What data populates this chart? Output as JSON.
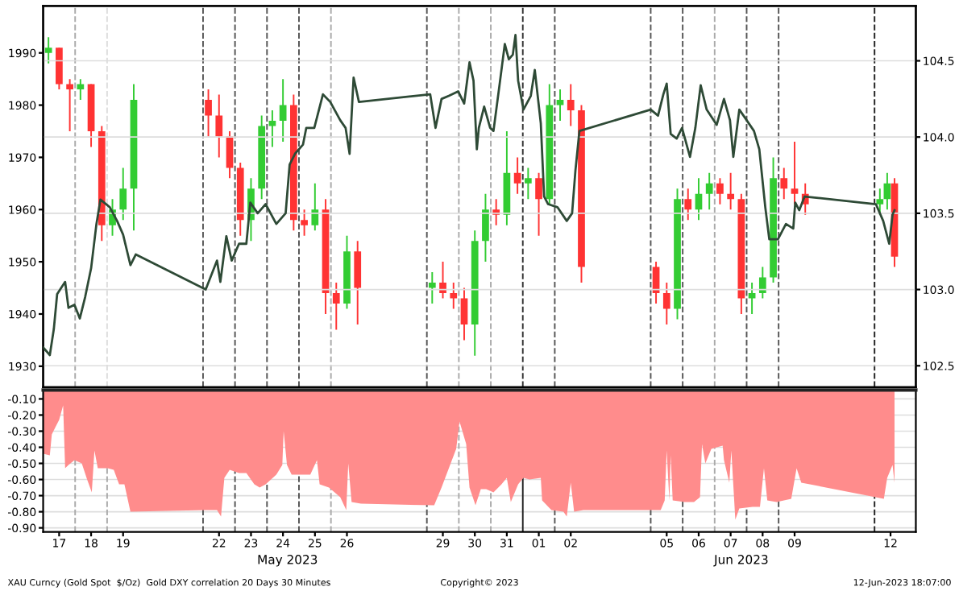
{
  "chart_data": [
    {
      "type": "candlestick",
      "tick_labels": "y",
      "grid": "y2",
      "xlim": [
        "2023-05-17T00:00",
        "2023-06-13T07:00"
      ],
      "ylim": [
        1926,
        1999
      ],
      "yticks": [
        1930,
        1940,
        1950,
        1960,
        1970,
        1980,
        1990
      ],
      "y2lim": [
        102.36,
        104.86
      ],
      "y2ticks": [
        {
          "value": 102.5,
          "label": "102.5"
        },
        {
          "value": 103.0,
          "label": "103.0"
        },
        {
          "value": 103.5,
          "label": "103.5"
        },
        {
          "value": 104.0,
          "label": "104.0"
        },
        {
          "value": 104.5,
          "label": "104.5"
        }
      ],
      "ref_lines": [
        {
          "axis": "x",
          "value": "2023-05-18",
          "color": "#aaaaaa",
          "line_style": "dashed"
        },
        {
          "axis": "x",
          "value": "2023-05-19",
          "color": "#dddddd",
          "line_style": "dashed"
        },
        {
          "axis": "x",
          "value": "2023-05-22",
          "color": "#555555",
          "line_style": "dashed"
        },
        {
          "axis": "x",
          "value": "2023-05-23",
          "color": "#555555",
          "line_style": "dashed"
        },
        {
          "axis": "x",
          "value": "2023-05-24",
          "color": "#555555",
          "line_style": "dashed"
        },
        {
          "axis": "x",
          "value": "2023-05-25",
          "color": "#555555",
          "line_style": "dashed"
        },
        {
          "axis": "x",
          "value": "2023-05-26",
          "color": "#aaaaaa",
          "line_style": "dashed"
        },
        {
          "axis": "x",
          "value": "2023-05-29",
          "color": "#555555",
          "line_style": "dashed"
        },
        {
          "axis": "x",
          "value": "2023-05-30",
          "color": "#aaaaaa",
          "line_style": "dashed"
        },
        {
          "axis": "x",
          "value": "2023-05-31",
          "color": "#aaaaaa",
          "line_style": "dashed"
        },
        {
          "axis": "x",
          "value": "2023-06-01",
          "color": "#333333",
          "line_style": "dashed"
        },
        {
          "axis": "x",
          "value": "2023-06-02",
          "color": "#555555",
          "line_style": "dashed"
        },
        {
          "axis": "x",
          "value": "2023-06-05",
          "color": "#555555",
          "line_style": "dashed"
        },
        {
          "axis": "x",
          "value": "2023-06-06",
          "color": "#555555",
          "line_style": "dashed"
        },
        {
          "axis": "x",
          "value": "2023-06-07",
          "color": "#aaaaaa",
          "line_style": "dashed"
        },
        {
          "axis": "x",
          "value": "2023-06-08",
          "color": "#555555",
          "line_style": "dashed"
        },
        {
          "axis": "x",
          "value": "2023-06-09",
          "color": "#555555",
          "line_style": "dashed"
        },
        {
          "axis": "x",
          "value": "2023-06-12",
          "color": "#222222",
          "line_style": "dashed"
        }
      ],
      "series": [
        {
          "x": [
            "2023-05-17T04:00",
            "2023-05-17T12:00",
            "2023-05-17T20:00",
            "2023-05-18T04:00",
            "2023-05-18T12:00",
            "2023-05-18T20:00",
            "2023-05-19T04:00",
            "2023-05-19T12:00",
            "2023-05-19T20:00",
            "2023-05-22T04:00",
            "2023-05-22T12:00",
            "2023-05-22T20:00",
            "2023-05-23T04:00",
            "2023-05-23T12:00",
            "2023-05-23T20:00",
            "2023-05-24T04:00",
            "2023-05-24T12:00",
            "2023-05-24T20:00",
            "2023-05-25T04:00",
            "2023-05-25T12:00",
            "2023-05-25T20:00",
            "2023-05-26T04:00",
            "2023-05-26T12:00",
            "2023-05-26T20:00",
            "2023-05-29T04:00",
            "2023-05-29T12:00",
            "2023-05-29T20:00",
            "2023-05-30T04:00",
            "2023-05-30T12:00",
            "2023-05-30T20:00",
            "2023-05-31T04:00",
            "2023-05-31T12:00",
            "2023-05-31T20:00",
            "2023-06-01T04:00",
            "2023-06-01T12:00",
            "2023-06-01T20:00",
            "2023-06-02T04:00",
            "2023-06-02T12:00",
            "2023-06-02T20:00",
            "2023-06-05T04:00",
            "2023-06-05T12:00",
            "2023-06-05T20:00",
            "2023-06-06T04:00",
            "2023-06-06T12:00",
            "2023-06-06T20:00",
            "2023-06-07T04:00",
            "2023-06-07T12:00",
            "2023-06-07T20:00",
            "2023-06-08T04:00",
            "2023-06-08T12:00",
            "2023-06-08T20:00",
            "2023-06-09T04:00",
            "2023-06-09T12:00",
            "2023-06-09T20:00",
            "2023-06-12T04:00",
            "2023-06-12T09:30",
            "2023-06-12T15:00"
          ],
          "ohlc": [
            [
              1990,
              1993,
              1988,
              1991
            ],
            [
              1991,
              1991,
              1983,
              1984
            ],
            [
              1984,
              1985,
              1975,
              1983
            ],
            [
              1983,
              1985,
              1981,
              1984
            ],
            [
              1984,
              1984,
              1972,
              1975
            ],
            [
              1975,
              1976,
              1954,
              1957
            ],
            [
              1957,
              1962,
              1955,
              1960
            ],
            [
              1960,
              1968,
              1958,
              1964
            ],
            [
              1964,
              1984,
              1956,
              1981
            ],
            [
              1981,
              1983,
              1974,
              1978
            ],
            [
              1978,
              1982,
              1970,
              1974
            ],
            [
              1974,
              1975,
              1966,
              1968
            ],
            [
              1968,
              1969,
              1955,
              1958
            ],
            [
              1958,
              1966,
              1954,
              1964
            ],
            [
              1964,
              1978,
              1962,
              1976
            ],
            [
              1976,
              1979,
              1972,
              1977
            ],
            [
              1977,
              1985,
              1973,
              1980
            ],
            [
              1980,
              1982,
              1956,
              1958
            ],
            [
              1958,
              1960,
              1955,
              1957
            ],
            [
              1957,
              1965,
              1956,
              1960
            ],
            [
              1960,
              1962,
              1940,
              1944
            ],
            [
              1944,
              1946,
              1937,
              1942
            ],
            [
              1942,
              1955,
              1941,
              1952
            ],
            [
              1952,
              1954,
              1938,
              1945
            ],
            [
              1945,
              1948,
              1942,
              1946
            ],
            [
              1946,
              1950,
              1943,
              1944
            ],
            [
              1944,
              1946,
              1941,
              1943
            ],
            [
              1943,
              1945,
              1935,
              1938
            ],
            [
              1938,
              1956,
              1932,
              1954
            ],
            [
              1954,
              1963,
              1950,
              1960
            ],
            [
              1960,
              1962,
              1957,
              1959
            ],
            [
              1959,
              1975,
              1957,
              1967
            ],
            [
              1967,
              1970,
              1963,
              1965
            ],
            [
              1965,
              1968,
              1962,
              1966
            ],
            [
              1966,
              1967,
              1955,
              1962
            ],
            [
              1962,
              1984,
              1961,
              1980
            ],
            [
              1980,
              1983,
              1977,
              1981
            ],
            [
              1981,
              1984,
              1976,
              1979
            ],
            [
              1979,
              1980,
              1946,
              1949
            ],
            [
              1949,
              1950,
              1942,
              1944
            ],
            [
              1944,
              1946,
              1938,
              1941
            ],
            [
              1941,
              1964,
              1939,
              1962
            ],
            [
              1962,
              1964,
              1958,
              1960
            ],
            [
              1960,
              1966,
              1958,
              1963
            ],
            [
              1963,
              1967,
              1960,
              1965
            ],
            [
              1965,
              1966,
              1961,
              1963
            ],
            [
              1963,
              1967,
              1960,
              1962
            ],
            [
              1962,
              1963,
              1940,
              1943
            ],
            [
              1943,
              1946,
              1940,
              1944
            ],
            [
              1944,
              1949,
              1943,
              1947
            ],
            [
              1947,
              1970,
              1946,
              1966
            ],
            [
              1966,
              1968,
              1962,
              1964
            ],
            [
              1964,
              1973,
              1961,
              1963
            ],
            [
              1963,
              1965,
              1959,
              1961
            ],
            [
              1961,
              1964,
              1959,
              1962
            ],
            [
              1962,
              1967,
              1960,
              1965
            ],
            [
              1965,
              1966,
              1949,
              1951
            ]
          ],
          "colors": [
            "#33cc33",
            "#ff3333",
            "#ff3333",
            "#33cc33",
            "#ff3333",
            "#ff3333",
            "#33cc33",
            "#33cc33",
            "#33cc33",
            "#ff3333",
            "#ff3333",
            "#ff3333",
            "#ff3333",
            "#33cc33",
            "#33cc33",
            "#33cc33",
            "#33cc33",
            "#ff3333",
            "#ff3333",
            "#33cc33",
            "#ff3333",
            "#ff3333",
            "#33cc33",
            "#ff3333",
            "#33cc33",
            "#ff3333",
            "#ff3333",
            "#ff3333",
            "#33cc33",
            "#33cc33",
            "#ff3333",
            "#33cc33",
            "#ff3333",
            "#33cc33",
            "#ff3333",
            "#33cc33",
            "#33cc33",
            "#ff3333",
            "#ff3333",
            "#ff3333",
            "#ff3333",
            "#33cc33",
            "#ff3333",
            "#33cc33",
            "#33cc33",
            "#ff3333",
            "#ff3333",
            "#ff3333",
            "#33cc33",
            "#33cc33",
            "#33cc33",
            "#ff3333",
            "#ff3333",
            "#ff3333",
            "#33cc33",
            "#33cc33",
            "#ff3333"
          ]
        },
        {
          "type": "line",
          "axis": "y2",
          "color": "#2e4a36",
          "x": [
            "2023-05-17T00:00",
            "2023-05-17T05:00",
            "2023-05-17T08:00",
            "2023-05-17T10:30",
            "2023-05-17T16:30",
            "2023-05-17T19:00",
            "2023-05-17T23:30",
            "2023-05-18T03:30",
            "2023-05-18T07:30",
            "2023-05-18T12:00",
            "2023-05-18T16:00",
            "2023-05-18T19:00",
            "2023-05-19T02:00",
            "2023-05-19T07:30",
            "2023-05-19T12:00",
            "2023-05-19T17:30",
            "2023-05-19T21:30",
            "2023-05-22T02:00",
            "2023-05-22T10:30",
            "2023-05-22T13:00",
            "2023-05-22T17:30",
            "2023-05-22T21:30",
            "2023-05-23T03:00",
            "2023-05-23T08:30",
            "2023-05-23T11:30",
            "2023-05-23T17:00",
            "2023-05-23T23:00",
            "2023-05-24T07:00",
            "2023-05-24T14:00",
            "2023-05-24T17:00",
            "2023-05-24T21:00",
            "2023-05-25T03:00",
            "2023-05-25T05:30",
            "2023-05-25T11:30",
            "2023-05-25T18:00",
            "2023-05-25T23:30",
            "2023-05-26T07:00",
            "2023-05-26T11:00",
            "2023-05-26T14:00",
            "2023-05-26T17:00",
            "2023-05-26T21:00",
            "2023-05-29T02:30",
            "2023-05-29T06:30",
            "2023-05-29T11:00",
            "2023-05-29T16:30",
            "2023-05-29T23:30",
            "2023-05-30T04:00",
            "2023-05-30T08:00",
            "2023-05-30T11:00",
            "2023-05-30T13:30",
            "2023-05-30T15:00",
            "2023-05-30T19:00",
            "2023-05-30T23:30",
            "2023-05-31T02:00",
            "2023-05-31T06:30",
            "2023-05-31T10:30",
            "2023-05-31T13:30",
            "2023-05-31T16:30",
            "2023-05-31T18:30",
            "2023-05-31T20:30",
            "2023-06-01T00:30",
            "2023-06-01T06:00",
            "2023-06-01T09:00",
            "2023-06-01T13:30",
            "2023-06-01T16:00",
            "2023-06-01T19:00",
            "2023-06-02T02:00",
            "2023-06-02T09:00",
            "2023-06-02T13:00",
            "2023-06-02T15:30",
            "2023-06-02T18:30",
            "2023-06-05T00:00",
            "2023-06-05T05:30",
            "2023-06-05T09:30",
            "2023-06-05T12:00",
            "2023-06-05T15:00",
            "2023-06-05T19:30",
            "2023-06-05T23:30",
            "2023-06-06T05:30",
            "2023-06-06T09:30",
            "2023-06-06T13:30",
            "2023-06-06T18:00",
            "2023-06-07T01:30",
            "2023-06-07T07:00",
            "2023-06-07T11:30",
            "2023-06-07T14:00",
            "2023-06-07T18:30",
            "2023-06-07T22:30",
            "2023-06-08T05:30",
            "2023-06-08T09:30",
            "2023-06-08T14:00",
            "2023-06-08T17:00",
            "2023-06-08T23:30",
            "2023-06-09T05:30",
            "2023-06-09T11:00",
            "2023-06-09T12:30",
            "2023-06-09T15:30",
            "2023-06-09T19:30",
            "2023-06-12T01:00",
            "2023-06-12T06:30",
            "2023-06-12T11:00",
            "2023-06-12T13:30",
            "2023-06-12T15:00"
          ],
          "values": [
            102.62,
            102.57,
            102.74,
            102.97,
            103.05,
            102.88,
            102.9,
            102.81,
            102.95,
            103.14,
            103.43,
            103.59,
            103.54,
            103.45,
            103.36,
            103.16,
            103.23,
            103.0,
            103.19,
            103.05,
            103.35,
            103.19,
            103.3,
            103.3,
            103.57,
            103.5,
            103.56,
            103.43,
            103.5,
            103.82,
            103.89,
            103.95,
            104.06,
            104.06,
            104.28,
            104.23,
            104.11,
            104.06,
            103.89,
            104.39,
            104.23,
            104.28,
            104.06,
            104.25,
            104.27,
            104.3,
            104.22,
            104.49,
            104.37,
            103.92,
            104.06,
            104.2,
            104.06,
            104.04,
            104.34,
            104.61,
            104.51,
            104.54,
            104.67,
            104.37,
            104.18,
            104.27,
            104.44,
            104.09,
            103.61,
            103.56,
            103.54,
            103.45,
            103.5,
            103.78,
            104.04,
            104.18,
            104.14,
            104.28,
            104.35,
            104.02,
            103.99,
            104.06,
            103.87,
            104.06,
            104.34,
            104.18,
            104.08,
            104.25,
            104.11,
            103.87,
            104.18,
            104.13,
            104.04,
            103.92,
            103.54,
            103.33,
            103.33,
            103.43,
            103.4,
            103.57,
            103.52,
            103.61,
            103.56,
            103.45,
            103.3,
            103.49,
            103.52
          ]
        }
      ]
    },
    {
      "type": "area",
      "grid": "y",
      "xlim": [
        "2023-05-17T00:00",
        "2023-06-13T07:00"
      ],
      "ylim": [
        -0.925,
        -0.045
      ],
      "yticks": [
        {
          "value": -0.1,
          "label": "-0.10"
        },
        {
          "value": -0.2,
          "label": "-0.20"
        },
        {
          "value": -0.3,
          "label": "-0.30"
        },
        {
          "value": -0.4,
          "label": "-0.40"
        },
        {
          "value": -0.5,
          "label": "-0.50"
        },
        {
          "value": -0.6,
          "label": "-0.60"
        },
        {
          "value": -0.7,
          "label": "-0.70"
        },
        {
          "value": -0.8,
          "label": "-0.80"
        },
        {
          "value": -0.9,
          "label": "-0.90"
        }
      ],
      "xticks": [
        {
          "value": "2023-05-17T12:00",
          "label": "17"
        },
        {
          "value": "2023-05-18T12:00",
          "label": "18"
        },
        {
          "value": "2023-05-19T12:00",
          "label": "19"
        },
        {
          "value": "2023-05-22T12:00",
          "label": "22"
        },
        {
          "value": "2023-05-23T12:00",
          "label": "23"
        },
        {
          "value": "2023-05-24T12:00",
          "label": "24"
        },
        {
          "value": "2023-05-25T12:00",
          "label": "25"
        },
        {
          "value": "2023-05-26T12:00",
          "label": "26"
        },
        {
          "value": "2023-05-29T12:00",
          "label": "29"
        },
        {
          "value": "2023-05-30T12:00",
          "label": "30"
        },
        {
          "value": "2023-05-31T12:00",
          "label": "31"
        },
        {
          "value": "2023-06-01T12:00",
          "label": "01"
        },
        {
          "value": "2023-06-02T12:00",
          "label": "02"
        },
        {
          "value": "2023-06-05T12:00",
          "label": "05"
        },
        {
          "value": "2023-06-06T12:00",
          "label": "06"
        },
        {
          "value": "2023-06-07T12:00",
          "label": "07"
        },
        {
          "value": "2023-06-08T12:00",
          "label": "08"
        },
        {
          "value": "2023-06-09T12:00",
          "label": "09"
        },
        {
          "value": "2023-06-12T12:00",
          "label": "12"
        }
      ],
      "ref_lines": [
        {
          "axis": "x",
          "value": "2023-05-18",
          "color": "#aaaaaa",
          "line_style": "dashed"
        },
        {
          "axis": "x",
          "value": "2023-05-19",
          "color": "#aaaaaa",
          "line_style": "dashed"
        },
        {
          "axis": "x",
          "value": "2023-05-22",
          "color": "#555555",
          "line_style": "dashed"
        },
        {
          "axis": "x",
          "value": "2023-05-23",
          "color": "#555555",
          "line_style": "dashed"
        },
        {
          "axis": "x",
          "value": "2023-05-24",
          "color": "#555555",
          "line_style": "dashed"
        },
        {
          "axis": "x",
          "value": "2023-05-25",
          "color": "#555555",
          "line_style": "dashed"
        },
        {
          "axis": "x",
          "value": "2023-05-26",
          "color": "#aaaaaa",
          "line_style": "dashed"
        },
        {
          "axis": "x",
          "value": "2023-05-29",
          "color": "#555555",
          "line_style": "dashed"
        },
        {
          "axis": "x",
          "value": "2023-05-30",
          "color": "#aaaaaa",
          "line_style": "dashed"
        },
        {
          "axis": "x",
          "value": "2023-05-31",
          "color": "#aaaaaa",
          "line_style": "dashed"
        },
        {
          "axis": "x",
          "value": "2023-06-01",
          "color": "#222222",
          "line_style": "solid"
        },
        {
          "axis": "x",
          "value": "2023-06-02",
          "color": "#555555",
          "line_style": "dashed"
        },
        {
          "axis": "x",
          "value": "2023-06-05",
          "color": "#555555",
          "line_style": "dashed"
        },
        {
          "axis": "x",
          "value": "2023-06-06",
          "color": "#555555",
          "line_style": "dashed"
        },
        {
          "axis": "x",
          "value": "2023-06-07",
          "color": "#aaaaaa",
          "line_style": "dashed"
        },
        {
          "axis": "x",
          "value": "2023-06-08",
          "color": "#555555",
          "line_style": "dashed"
        },
        {
          "axis": "x",
          "value": "2023-06-09",
          "color": "#555555",
          "line_style": "dashed"
        },
        {
          "axis": "x",
          "value": "2023-06-12",
          "color": "#222222",
          "line_style": "dashed"
        }
      ],
      "annotations": [
        "May 2023",
        "Jun 2023",
        "XAU Curncy (Gold Spot  $/Oz)  Gold DXY correlation 20 Days 30 Minutes",
        "Copyright© 2023",
        "12-Jun-2023 18:07:00"
      ],
      "series": [
        {
          "color": "#ff8c8c",
          "x": [
            "2023-05-17T00:00",
            "2023-05-17T05:00",
            "2023-05-17T06:30",
            "2023-05-17T09:30",
            "2023-05-17T12:00",
            "2023-05-17T15:00",
            "2023-05-17T16:30",
            "2023-05-17T19:00",
            "2023-05-17T23:30",
            "2023-05-18T05:00",
            "2023-05-18T09:00",
            "2023-05-18T12:30",
            "2023-05-18T14:30",
            "2023-05-18T17:00",
            "2023-05-19T00:30",
            "2023-05-19T05:00",
            "2023-05-19T09:00",
            "2023-05-19T13:00",
            "2023-05-19T17:30",
            "2023-05-22T02:00",
            "2023-05-22T10:30",
            "2023-05-22T13:30",
            "2023-05-22T16:00",
            "2023-05-22T20:00",
            "2023-05-23T03:00",
            "2023-05-23T08:30",
            "2023-05-23T14:30",
            "2023-05-23T18:30",
            "2023-05-23T23:00",
            "2023-05-24T07:00",
            "2023-05-24T11:30",
            "2023-05-24T12:30",
            "2023-05-24T15:00",
            "2023-05-24T18:30",
            "2023-05-25T00:00",
            "2023-05-25T08:30",
            "2023-05-25T13:30",
            "2023-05-25T15:30",
            "2023-05-25T22:30",
            "2023-05-26T07:00",
            "2023-05-26T11:30",
            "2023-05-26T13:00",
            "2023-05-26T15:30",
            "2023-05-26T22:30",
            "2023-05-29T05:30",
            "2023-05-29T11:00",
            "2023-05-29T16:30",
            "2023-05-29T22:00",
            "2023-05-30T00:30",
            "2023-05-30T05:30",
            "2023-05-30T08:00",
            "2023-05-30T12:30",
            "2023-05-30T16:30",
            "2023-05-30T20:30",
            "2023-05-31T02:00",
            "2023-05-31T08:00",
            "2023-05-31T12:00",
            "2023-05-31T15:00",
            "2023-05-31T20:30",
            "2023-06-01T00:30",
            "2023-06-01T05:00",
            "2023-06-01T13:30",
            "2023-06-01T14:30",
            "2023-06-01T21:30",
            "2023-06-02T06:30",
            "2023-06-02T09:00",
            "2023-06-02T12:00",
            "2023-06-02T14:30",
            "2023-06-02T21:30",
            "2023-06-05T07:30",
            "2023-06-05T10:30",
            "2023-06-05T12:00",
            "2023-06-05T14:00",
            "2023-06-05T15:00",
            "2023-06-05T16:30",
            "2023-06-06T01:30",
            "2023-06-06T08:30",
            "2023-06-06T13:00",
            "2023-06-06T14:30",
            "2023-06-06T17:00",
            "2023-06-06T21:30",
            "2023-06-07T06:00",
            "2023-06-07T07:00",
            "2023-06-07T11:00",
            "2023-06-07T12:30",
            "2023-06-07T15:30",
            "2023-06-07T18:30",
            "2023-06-08T04:30",
            "2023-06-08T10:00",
            "2023-06-08T13:00",
            "2023-06-08T15:30",
            "2023-06-08T22:30",
            "2023-06-09T09:30",
            "2023-06-09T13:30",
            "2023-06-09T17:00",
            "2023-06-09T23:30",
            "2023-06-12T07:00",
            "2023-06-12T09:30",
            "2023-06-12T13:30",
            "2023-06-12T15:00"
          ],
          "values": [
            -0.44,
            -0.45,
            -0.32,
            -0.27,
            -0.23,
            -0.14,
            -0.53,
            -0.51,
            -0.48,
            -0.5,
            -0.6,
            -0.68,
            -0.42,
            -0.53,
            -0.53,
            -0.54,
            -0.63,
            -0.63,
            -0.8,
            -0.79,
            -0.79,
            -0.83,
            -0.59,
            -0.54,
            -0.56,
            -0.56,
            -0.63,
            -0.65,
            -0.63,
            -0.57,
            -0.51,
            -0.3,
            -0.51,
            -0.57,
            -0.57,
            -0.57,
            -0.48,
            -0.63,
            -0.65,
            -0.71,
            -0.79,
            -0.5,
            -0.74,
            -0.75,
            -0.76,
            -0.65,
            -0.53,
            -0.41,
            -0.24,
            -0.38,
            -0.65,
            -0.76,
            -0.66,
            -0.66,
            -0.68,
            -0.63,
            -0.59,
            -0.74,
            -0.63,
            -0.59,
            -0.6,
            -0.59,
            -0.73,
            -0.79,
            -0.8,
            -0.83,
            -0.62,
            -0.8,
            -0.79,
            -0.79,
            -0.73,
            -0.42,
            -0.73,
            -0.45,
            -0.73,
            -0.74,
            -0.74,
            -0.71,
            -0.38,
            -0.5,
            -0.41,
            -0.39,
            -0.48,
            -0.62,
            -0.42,
            -0.85,
            -0.78,
            -0.77,
            -0.77,
            -0.53,
            -0.73,
            -0.74,
            -0.72,
            -0.53,
            -0.62,
            -0.63,
            -0.72,
            -0.59,
            -0.51,
            -0.62
          ]
        }
      ]
    }
  ]
}
